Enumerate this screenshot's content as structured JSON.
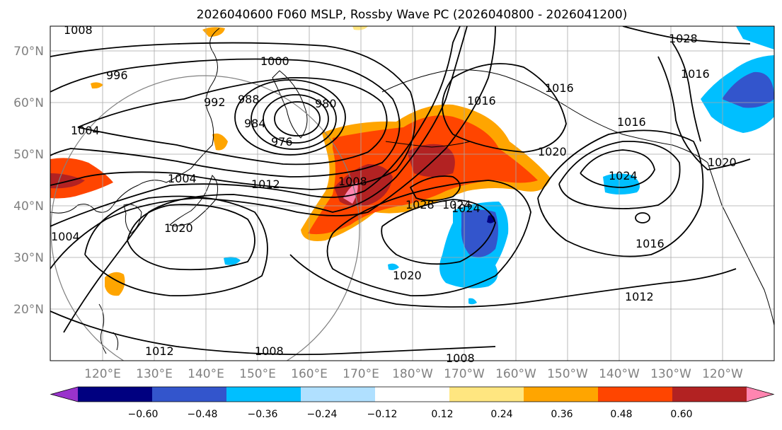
{
  "title": "2026040600 F060 MSLP, Rossby Wave PC (2026040800 - 2026041200)",
  "map": {
    "lat_labels": [
      "70°N",
      "60°N",
      "50°N",
      "40°N",
      "30°N",
      "20°N"
    ],
    "lon_labels": [
      "120°E",
      "130°E",
      "140°E",
      "150°E",
      "160°E",
      "170°E",
      "180°W",
      "170°W",
      "160°W",
      "150°W",
      "140°W",
      "130°W",
      "120°W"
    ],
    "contour_labels": [
      "1000",
      "996",
      "992",
      "988",
      "984",
      "980",
      "976",
      "1004",
      "1008",
      "1012",
      "1016",
      "1020",
      "1024",
      "1028",
      "1012",
      "1016",
      "1020",
      "1024",
      "1028",
      "1016",
      "1016",
      "1004",
      "1012",
      "1008",
      "1008",
      "1020",
      "1004",
      "1008",
      "1024",
      "1016",
      "1020"
    ]
  },
  "colorbar": {
    "colors": [
      "#9933cc",
      "#000080",
      "#3355cc",
      "#00bfff",
      "#b0e0ff",
      "#ffffff",
      "#ffe680",
      "#ffa500",
      "#ff4500",
      "#b22222",
      "#ff85b0"
    ],
    "tick_labels": [
      "−0.60",
      "−0.48",
      "−0.36",
      "−0.24",
      "−0.12",
      "0.12",
      "0.24",
      "0.36",
      "0.48",
      "0.60"
    ]
  }
}
